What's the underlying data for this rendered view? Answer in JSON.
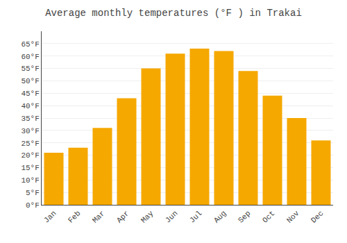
{
  "chart_data": {
    "type": "bar",
    "title": "Average monthly temperatures (°F ) in Trakai",
    "categories": [
      "Jan",
      "Feb",
      "Mar",
      "Apr",
      "May",
      "Jun",
      "Jul",
      "Aug",
      "Sep",
      "Oct",
      "Nov",
      "Dec"
    ],
    "values": [
      21,
      23,
      31,
      43,
      55,
      61,
      63,
      62,
      54,
      44,
      35,
      26
    ],
    "color": "#F5A800",
    "ylim": [
      0,
      70
    ],
    "yticks": [
      {
        "value": 0,
        "label": "0°F"
      },
      {
        "value": 5,
        "label": "5°F"
      },
      {
        "value": 10,
        "label": "10°F"
      },
      {
        "value": 15,
        "label": "15°F"
      },
      {
        "value": 20,
        "label": "20°F"
      },
      {
        "value": 25,
        "label": "25°F"
      },
      {
        "value": 30,
        "label": "30°F"
      },
      {
        "value": 35,
        "label": "35°F"
      },
      {
        "value": 40,
        "label": "40°F"
      },
      {
        "value": 45,
        "label": "45°F"
      },
      {
        "value": 50,
        "label": "50°F"
      },
      {
        "value": 55,
        "label": "55°F"
      },
      {
        "value": 60,
        "label": "60°F"
      },
      {
        "value": 65,
        "label": "65°F"
      }
    ],
    "grid": true
  }
}
